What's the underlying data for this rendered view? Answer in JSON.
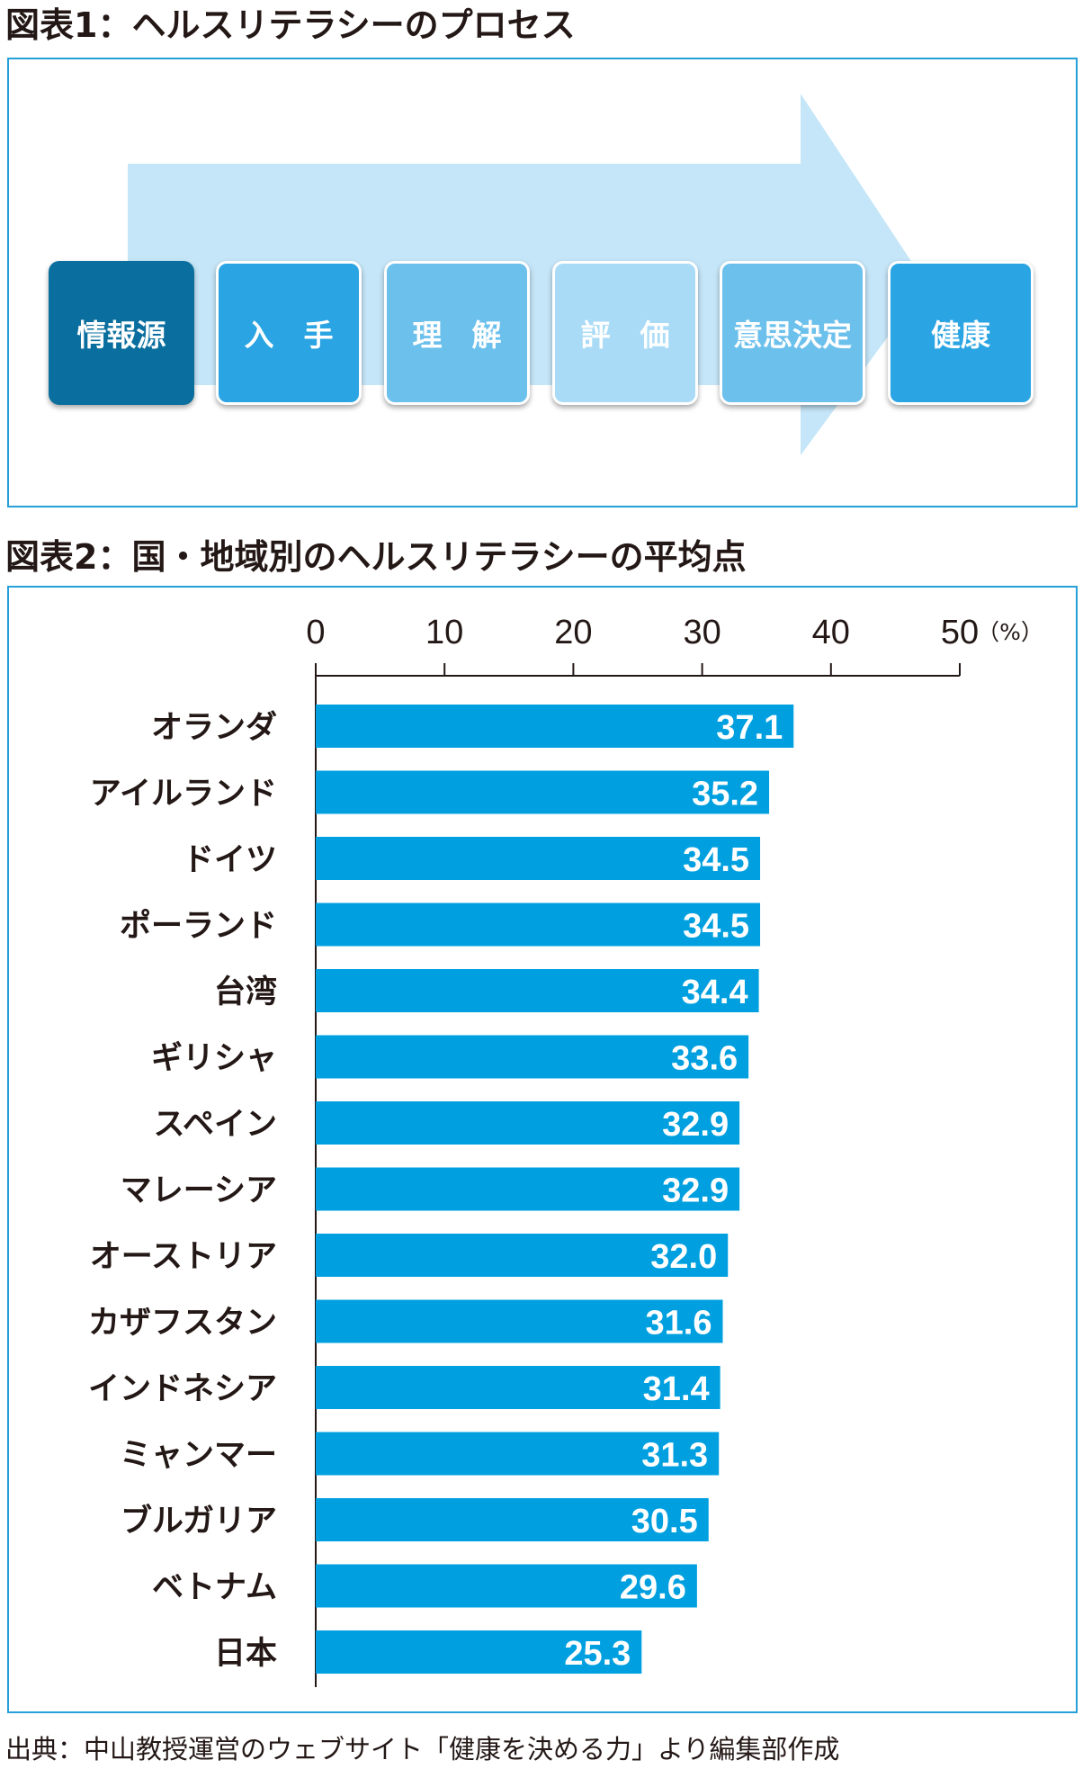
{
  "figure1": {
    "title": "図表1：ヘルスリテラシーのプロセス",
    "steps": [
      "情報源",
      "入　手",
      "理　解",
      "評　価",
      "意思決定",
      "健康"
    ]
  },
  "figure2": {
    "title": "図表2：国・地域別のヘルスリテラシーの平均点"
  },
  "chart_data": {
    "type": "bar",
    "orientation": "horizontal",
    "title": "図表2：国・地域別のヘルスリテラシーの平均点",
    "unit_label": "（%）",
    "xlim": [
      0,
      50
    ],
    "ticks": [
      0,
      10,
      20,
      30,
      40,
      50
    ],
    "bar_color": "#00a0e0",
    "categories": [
      "オランダ",
      "アイルランド",
      "ドイツ",
      "ポーランド",
      "台湾",
      "ギリシャ",
      "スペイン",
      "マレーシア",
      "オーストリア",
      "カザフスタン",
      "インドネシア",
      "ミャンマー",
      "ブルガリア",
      "ベトナム",
      "日本"
    ],
    "values": [
      37.1,
      35.2,
      34.5,
      34.5,
      34.4,
      33.6,
      32.9,
      32.9,
      32.0,
      31.6,
      31.4,
      31.3,
      30.5,
      29.6,
      25.3
    ],
    "value_labels": [
      "37.1",
      "35.2",
      "34.5",
      "34.5",
      "34.4",
      "33.6",
      "32.9",
      "32.9",
      "32.0",
      "31.6",
      "31.4",
      "31.3",
      "30.5",
      "29.6",
      "25.3"
    ]
  },
  "source": "出典：中山教授運営のウェブサイト「健康を決める力」より編集部作成",
  "colors": {
    "frame": "#26a0d8",
    "arrow": "#c5e6f8",
    "bar": "#00a0e0",
    "dark_step": "#0a6f9e"
  }
}
